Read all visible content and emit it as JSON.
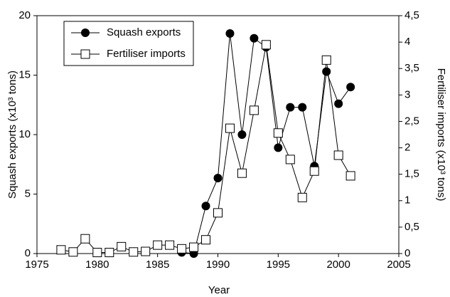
{
  "chart_data": {
    "type": "line",
    "xlabel": "Year",
    "ylabel": "Squash exports (x10³ tons)",
    "y2label": "Fertiliser imports (x10³ tons)",
    "xlim": [
      1975,
      2005
    ],
    "xticks": [
      1975,
      1980,
      1985,
      1990,
      1995,
      2000,
      2005
    ],
    "ylim": [
      0,
      20
    ],
    "yticks": [
      0,
      5,
      10,
      15,
      20
    ],
    "y2lim": [
      0,
      4.5
    ],
    "y2ticks": [
      0,
      {
        "value": 0.5,
        "label": "0,5"
      },
      1,
      {
        "value": 1.5,
        "label": "1,5"
      },
      2,
      {
        "value": 2.5,
        "label": "2,5"
      },
      3,
      {
        "value": 3.5,
        "label": "3,5"
      },
      4,
      {
        "value": 4.5,
        "label": "4,5"
      }
    ],
    "legend": "upper left",
    "series": [
      {
        "name": "Squash exports",
        "color": "#000000",
        "marker": "circle",
        "x": [
          1987,
          1988,
          1989,
          1990,
          1991,
          1992,
          1993,
          1994,
          1995,
          1996,
          1997,
          1998,
          1999,
          2000,
          2001
        ],
        "values": [
          0.1,
          0,
          4.0,
          6.35,
          18.5,
          10.0,
          18.1,
          17.35,
          8.9,
          12.3,
          12.3,
          7.35,
          15.3,
          12.6,
          14.0
        ]
      },
      {
        "name": "Fertiliser imports",
        "color": "#000000",
        "marker": "square",
        "axis": "y2",
        "x": [
          1977,
          1978,
          1979,
          1980,
          1981,
          1982,
          1983,
          1984,
          1985,
          1986,
          1987,
          1988,
          1989,
          1990,
          1991,
          1992,
          1993,
          1994,
          1995,
          1996,
          1997,
          1998,
          1999,
          2000,
          2001
        ],
        "values": [
          0.07,
          0.03,
          0.28,
          0.02,
          0.02,
          0.13,
          0.03,
          0.04,
          0.16,
          0.16,
          0.09,
          0.12,
          0.26,
          0.77,
          2.37,
          1.52,
          2.71,
          3.95,
          2.28,
          1.78,
          1.06,
          1.56,
          3.66,
          1.86,
          1.47
        ]
      }
    ]
  }
}
